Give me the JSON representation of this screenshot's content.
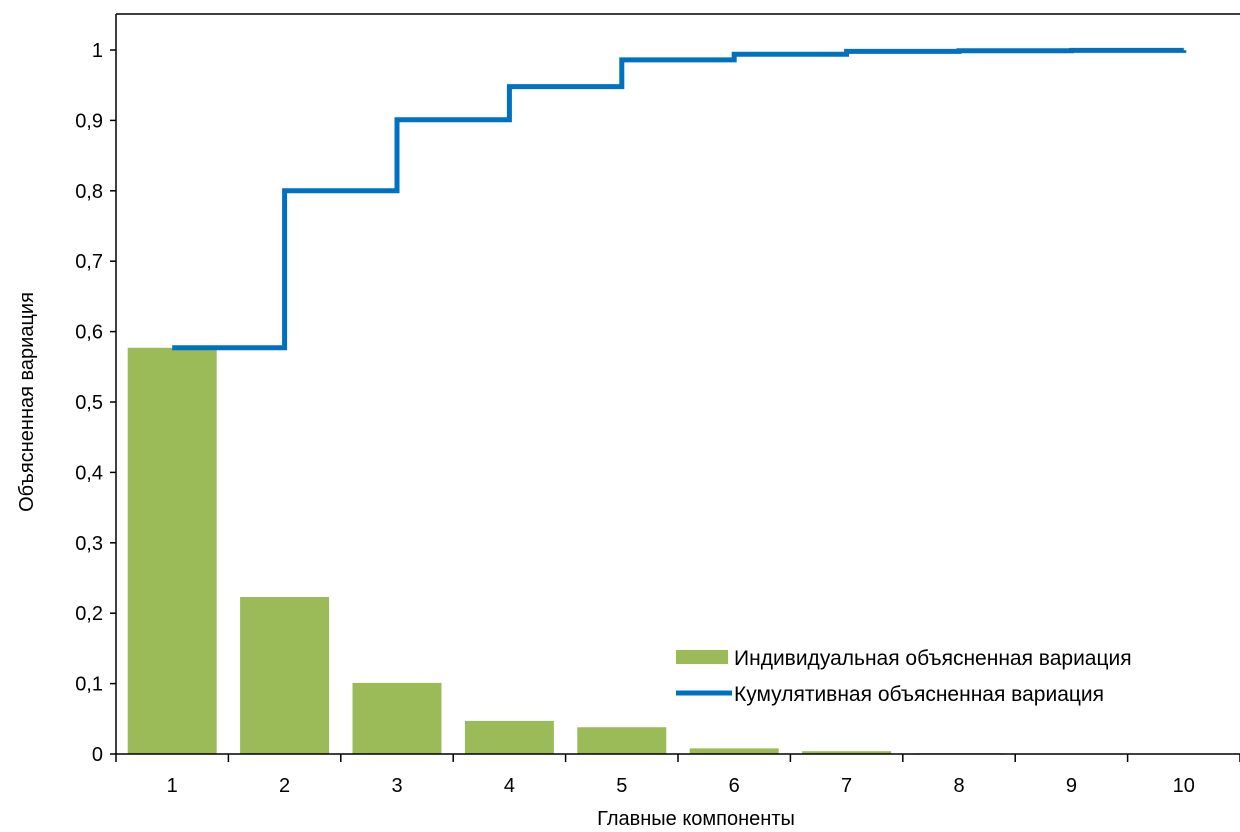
{
  "chart_data": {
    "type": "bar",
    "title": "",
    "xlabel": "Главные компоненты",
    "ylabel": "Объясненная вариация",
    "categories": [
      "1",
      "2",
      "3",
      "4",
      "5",
      "6",
      "7",
      "8",
      "9",
      "10"
    ],
    "ylim": [
      0,
      1.05
    ],
    "yticks": [
      "0",
      "0,1",
      "0,2",
      "0,3",
      "0,4",
      "0,5",
      "0,6",
      "0,7",
      "0,8",
      "0,9",
      "1"
    ],
    "ytick_values": [
      0,
      0.1,
      0.2,
      0.3,
      0.4,
      0.5,
      0.6,
      0.7,
      0.8,
      0.9,
      1.0
    ],
    "grid": false,
    "legend_position": "bottom-right",
    "series": [
      {
        "name": "Индивидуальная объясненная вариация",
        "type": "bar",
        "color": "#9bbb59",
        "values": [
          0.577,
          0.223,
          0.101,
          0.047,
          0.038,
          0.008,
          0.004,
          0.001,
          0.0005,
          0.0002
        ]
      },
      {
        "name": "Кумулятивная объясненная вариация",
        "type": "step",
        "color": "#0070c0",
        "values": [
          0.577,
          0.8,
          0.901,
          0.948,
          0.986,
          0.994,
          0.998,
          0.999,
          0.9995,
          0.9997
        ]
      }
    ]
  }
}
